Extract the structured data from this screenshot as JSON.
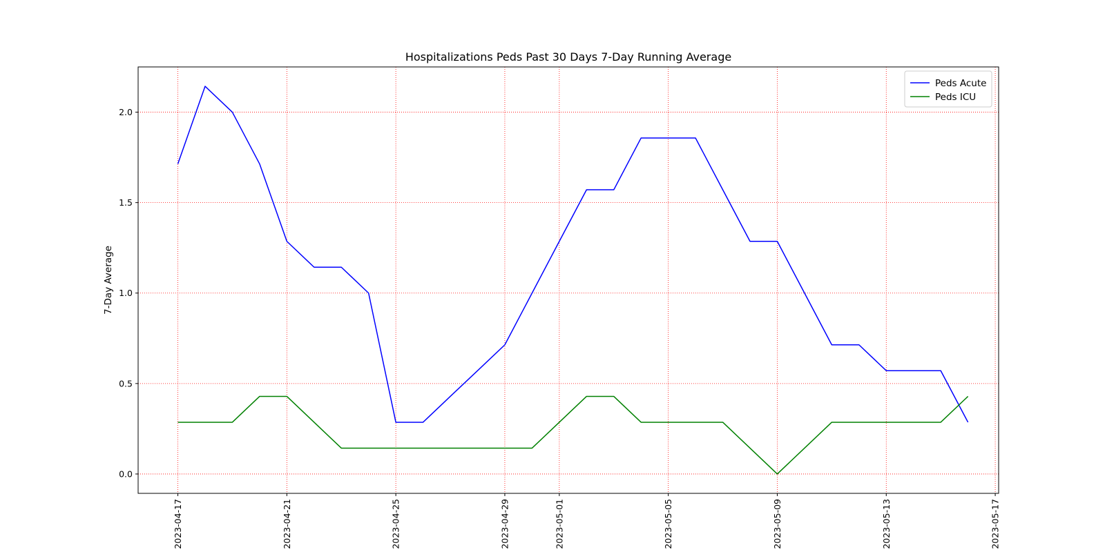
{
  "chart_data": {
    "type": "line",
    "title": "Hospitalizations Peds Past 30 Days 7-Day Running Average",
    "xlabel": "",
    "ylabel": "7-Day Average",
    "x_type": "date",
    "x": [
      "2023-04-17",
      "2023-04-18",
      "2023-04-19",
      "2023-04-20",
      "2023-04-21",
      "2023-04-22",
      "2023-04-23",
      "2023-04-24",
      "2023-04-25",
      "2023-04-26",
      "2023-04-27",
      "2023-04-28",
      "2023-04-29",
      "2023-04-30",
      "2023-05-01",
      "2023-05-02",
      "2023-05-03",
      "2023-05-04",
      "2023-05-05",
      "2023-05-06",
      "2023-05-07",
      "2023-05-08",
      "2023-05-09",
      "2023-05-10",
      "2023-05-11",
      "2023-05-12",
      "2023-05-13",
      "2023-05-14",
      "2023-05-15",
      "2023-05-16"
    ],
    "series": [
      {
        "name": "Peds Acute",
        "color": "#0000ff",
        "values": [
          1.714,
          2.143,
          2.0,
          1.714,
          1.286,
          1.143,
          1.143,
          1.0,
          0.286,
          0.286,
          0.429,
          0.571,
          0.714,
          1.0,
          1.286,
          1.571,
          1.571,
          1.857,
          1.857,
          1.857,
          1.571,
          1.286,
          1.286,
          1.0,
          0.714,
          0.714,
          0.571,
          0.571,
          0.571,
          0.286
        ]
      },
      {
        "name": "Peds ICU",
        "color": "#008000",
        "values": [
          0.286,
          0.286,
          0.286,
          0.429,
          0.429,
          0.286,
          0.143,
          0.143,
          0.143,
          0.143,
          0.143,
          0.143,
          0.143,
          0.143,
          0.286,
          0.429,
          0.429,
          0.286,
          0.286,
          0.286,
          0.286,
          0.143,
          0.0,
          0.143,
          0.286,
          0.286,
          0.286,
          0.286,
          0.286,
          0.429
        ]
      }
    ],
    "xlim": [
      "2023-04-15T13:00",
      "2023-05-17T03:00"
    ],
    "ylim": [
      -0.107,
      2.25
    ],
    "x_ticks": [
      "2023-04-17",
      "2023-04-21",
      "2023-04-25",
      "2023-04-29",
      "2023-05-01",
      "2023-05-05",
      "2023-05-09",
      "2023-05-13",
      "2023-05-17"
    ],
    "y_ticks": [
      "0.0",
      "0.5",
      "1.0",
      "1.5",
      "2.0"
    ],
    "grid": true,
    "grid_color": "#ff0000",
    "legend_position": "upper right"
  }
}
